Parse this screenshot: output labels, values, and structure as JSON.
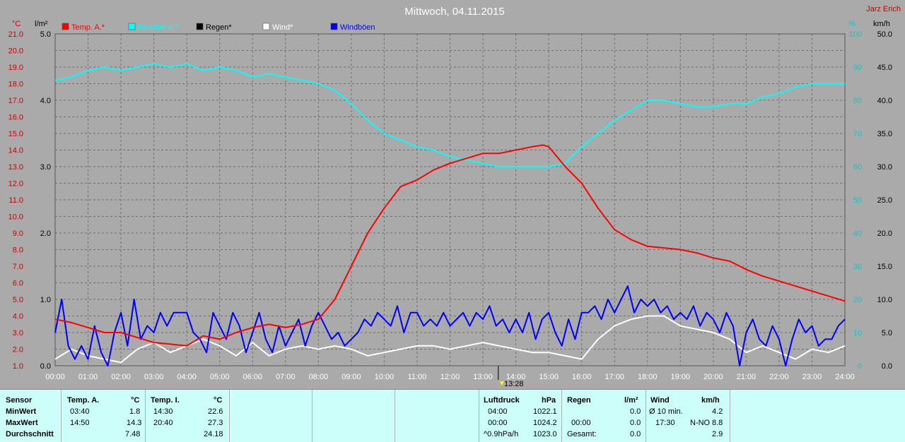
{
  "header": {
    "title": "Mittwoch, 04.11.2015",
    "author": "Jarz Erich"
  },
  "chart_data": {
    "type": "line",
    "x_ticks": [
      "00:00",
      "01:00",
      "02:00",
      "03:00",
      "04:00",
      "05:00",
      "06:00",
      "07:00",
      "08:00",
      "09:00",
      "10:00",
      "11:00",
      "12:00",
      "13:00",
      "14:00",
      "15:00",
      "16:00",
      "17:00",
      "18:00",
      "19:00",
      "20:00",
      "21:00",
      "22:00",
      "23:00",
      "24:00"
    ],
    "axes": {
      "temp": {
        "unit": "°C",
        "min": 1.0,
        "max": 21.0,
        "ticks": [
          "1.0",
          "2.0",
          "3.0",
          "4.0",
          "5.0",
          "6.0",
          "7.0",
          "8.0",
          "9.0",
          "10.0",
          "11.0",
          "12.0",
          "13.0",
          "14.0",
          "15.0",
          "16.0",
          "17.0",
          "18.0",
          "19.0",
          "20.0",
          "21.0"
        ],
        "color": "#cc0000"
      },
      "rain": {
        "unit": "l/m²",
        "min": 0.0,
        "max": 5.0,
        "ticks": [
          "0.0",
          "1.0",
          "2.0",
          "3.0",
          "4.0",
          "5.0"
        ],
        "color": "#000000"
      },
      "humidity": {
        "unit": "%",
        "min": 0,
        "max": 100,
        "ticks": [
          "0",
          "10",
          "20",
          "30",
          "40",
          "50",
          "60",
          "70",
          "80",
          "90",
          "100"
        ],
        "color": "#00cccc"
      },
      "wind": {
        "unit": "km/h",
        "min": 0.0,
        "max": 50.0,
        "ticks": [
          "0.0",
          "5.0",
          "10.0",
          "15.0",
          "20.0",
          "25.0",
          "30.0",
          "35.0",
          "40.0",
          "45.0",
          "50.0"
        ],
        "color": "#000000"
      }
    },
    "legend": [
      {
        "name": "Temp. A.*",
        "color": "#ff0000"
      },
      {
        "name": "Feuchte A.*",
        "color": "#00ffff"
      },
      {
        "name": "Regen*",
        "color": "#000000"
      },
      {
        "name": "Wind*",
        "color": "#ffffff"
      },
      {
        "name": "Windböen",
        "color": "#0000ff"
      }
    ],
    "marker_label": "13:28",
    "series": [
      {
        "name": "Temp. A.*",
        "axis": "temp",
        "color": "#ff0000",
        "x": [
          0,
          0.5,
          1,
          1.5,
          2,
          2.5,
          3,
          3.5,
          4,
          4.5,
          5,
          5.5,
          6,
          6.5,
          7,
          7.5,
          8,
          8.5,
          9,
          9.5,
          10,
          10.5,
          11,
          11.5,
          12,
          12.5,
          13,
          13.5,
          14,
          14.5,
          14.83,
          15,
          15.5,
          16,
          16.5,
          17,
          17.5,
          18,
          18.5,
          19,
          19.5,
          20,
          20.5,
          21,
          21.5,
          22,
          22.5,
          23,
          23.5,
          24
        ],
        "y": [
          3.8,
          3.6,
          3.3,
          3.0,
          3.0,
          2.7,
          2.4,
          2.3,
          2.2,
          2.8,
          2.6,
          3.0,
          3.3,
          3.5,
          3.3,
          3.5,
          3.8,
          5.0,
          7.0,
          9.0,
          10.5,
          11.8,
          12.2,
          12.8,
          13.2,
          13.5,
          13.8,
          13.8,
          14.0,
          14.2,
          14.3,
          14.2,
          13.0,
          12.0,
          10.5,
          9.2,
          8.6,
          8.2,
          8.1,
          8.0,
          7.8,
          7.5,
          7.3,
          6.8,
          6.4,
          6.1,
          5.8,
          5.5,
          5.2,
          4.9
        ]
      },
      {
        "name": "Feuchte A.*",
        "axis": "humidity",
        "color": "#00ffff",
        "x": [
          0,
          0.5,
          1,
          1.5,
          2,
          2.5,
          3,
          3.5,
          4,
          4.5,
          5,
          5.5,
          6,
          6.5,
          7,
          7.5,
          8,
          8.5,
          9,
          9.5,
          10,
          10.5,
          11,
          11.5,
          12,
          12.5,
          13,
          13.5,
          14,
          14.5,
          15,
          15.5,
          16,
          16.5,
          17,
          17.5,
          18,
          18.5,
          19,
          19.5,
          20,
          20.5,
          21,
          21.5,
          22,
          22.5,
          23,
          23.5,
          24
        ],
        "y": [
          86,
          87,
          89,
          90,
          89,
          90,
          91,
          90,
          91,
          89,
          90,
          89,
          87,
          88,
          87,
          86,
          85,
          83,
          79,
          74,
          70,
          68,
          66,
          65,
          63,
          62,
          61,
          60,
          60,
          60,
          60,
          61,
          66,
          70,
          74,
          77,
          80,
          80,
          79,
          78,
          78,
          79,
          79,
          81,
          82,
          84,
          85,
          85,
          85
        ]
      },
      {
        "name": "Wind*",
        "axis": "wind",
        "color": "#ffffff",
        "x": [
          0,
          0.5,
          1,
          1.5,
          2,
          2.5,
          3,
          3.5,
          4,
          4.5,
          5,
          5.5,
          6,
          6.5,
          7,
          7.5,
          8,
          8.5,
          9,
          9.5,
          10,
          10.5,
          11,
          11.5,
          12,
          12.5,
          13,
          13.5,
          14,
          14.5,
          15,
          15.5,
          16,
          16.5,
          17,
          17.5,
          18,
          18.5,
          19,
          19.5,
          20,
          20.5,
          21,
          21.5,
          22,
          22.5,
          23,
          23.5,
          24
        ],
        "y": [
          1,
          2.5,
          1.5,
          1,
          0.5,
          2.5,
          3.5,
          2,
          3,
          4,
          3,
          1.5,
          3.5,
          1.5,
          2.5,
          3,
          2.5,
          3,
          2.5,
          1.5,
          2,
          2.5,
          3,
          3,
          2.5,
          3,
          3.5,
          3,
          2.5,
          2,
          2,
          1.5,
          1,
          4,
          6,
          7,
          7.5,
          7.5,
          6,
          5.5,
          5,
          4,
          2,
          3,
          2,
          1,
          2.5,
          2,
          3
        ]
      },
      {
        "name": "Windböen",
        "axis": "wind",
        "color": "#0000ff",
        "x": [
          0,
          0.2,
          0.4,
          0.6,
          0.8,
          1,
          1.2,
          1.4,
          1.6,
          1.8,
          2,
          2.2,
          2.4,
          2.6,
          2.8,
          3,
          3.2,
          3.4,
          3.6,
          3.8,
          4,
          4.2,
          4.4,
          4.6,
          4.8,
          5,
          5.2,
          5.4,
          5.6,
          5.8,
          6,
          6.2,
          6.4,
          6.6,
          6.8,
          7,
          7.2,
          7.4,
          7.6,
          7.8,
          8,
          8.2,
          8.4,
          8.6,
          8.8,
          9,
          9.2,
          9.4,
          9.6,
          9.8,
          10,
          10.2,
          10.4,
          10.6,
          10.8,
          11,
          11.2,
          11.4,
          11.6,
          11.8,
          12,
          12.2,
          12.4,
          12.6,
          12.8,
          13,
          13.2,
          13.4,
          13.6,
          13.8,
          14,
          14.2,
          14.4,
          14.6,
          14.8,
          15,
          15.2,
          15.4,
          15.6,
          15.8,
          16,
          16.2,
          16.4,
          16.6,
          16.8,
          17,
          17.2,
          17.4,
          17.6,
          17.8,
          18,
          18.2,
          18.4,
          18.6,
          18.8,
          19,
          19.2,
          19.4,
          19.6,
          19.8,
          20,
          20.2,
          20.4,
          20.6,
          20.8,
          21,
          21.2,
          21.4,
          21.6,
          21.8,
          22,
          22.2,
          22.4,
          22.6,
          22.8,
          23,
          23.2,
          23.4,
          23.6,
          23.8,
          24
        ],
        "y": [
          5,
          10,
          3,
          1,
          3,
          1,
          6,
          2,
          0,
          5,
          8,
          3,
          10,
          4,
          6,
          5,
          8,
          6,
          8,
          8,
          8,
          5,
          4,
          2,
          8,
          6,
          4,
          8,
          6,
          2,
          5,
          8,
          4,
          2,
          6,
          3,
          5,
          7,
          3,
          6,
          8,
          6,
          4,
          5,
          3,
          4,
          5,
          7,
          6,
          8,
          7,
          6,
          9,
          5,
          8,
          8,
          6,
          7,
          6,
          8,
          6,
          7,
          8,
          6,
          8,
          7,
          9,
          6,
          7,
          5,
          7,
          5,
          8,
          4,
          7,
          8,
          5,
          3,
          7,
          4,
          8,
          8,
          9,
          7,
          10,
          8,
          10,
          12,
          8,
          10,
          9,
          10,
          8,
          9,
          7,
          8,
          7,
          9,
          6,
          8,
          7,
          5,
          8,
          6,
          0,
          5,
          7,
          4,
          3,
          6,
          4,
          0,
          4,
          7,
          5,
          6,
          3,
          4,
          4,
          6,
          7
        ]
      }
    ]
  },
  "stats": {
    "sensor_header": "Sensor",
    "row_labels": [
      "MinWert",
      "MaxWert",
      "Durchschnitt"
    ],
    "temp_a": {
      "title": "Temp. A.",
      "unit": "°C",
      "min_time": "03:40",
      "min_val": "1.8",
      "max_time": "14:50",
      "max_val": "14.3",
      "avg": "7.48"
    },
    "temp_i": {
      "title": "Temp. I.",
      "unit": "°C",
      "min_time": "14:30",
      "min_val": "22.6",
      "max_time": "20:40",
      "max_val": "27.3",
      "avg": "24.18"
    },
    "pressure": {
      "title": "Luftdruck",
      "unit": "hPa",
      "r1_label": "04:00",
      "r1_val": "1022.1",
      "r2_label": "00:00",
      "r2_val": "1024.2",
      "r3_label": "^0.9hPa/h",
      "r3_val": "1023.0"
    },
    "rain": {
      "title": "Regen",
      "unit": "l/m²",
      "r2_label": "00:00",
      "r2_val": "0.0",
      "r1_val": "0.0",
      "r3_label": "Gesamt:",
      "r3_val": "0.0"
    },
    "wind": {
      "title": "Wind",
      "unit": "km/h",
      "r1_label": "Ø 10 min.",
      "r1_val": "4.2",
      "r2_label": "17:30",
      "r2_dir": "N-NO",
      "r2_val": "8.8",
      "r3_val": "2.9"
    }
  }
}
